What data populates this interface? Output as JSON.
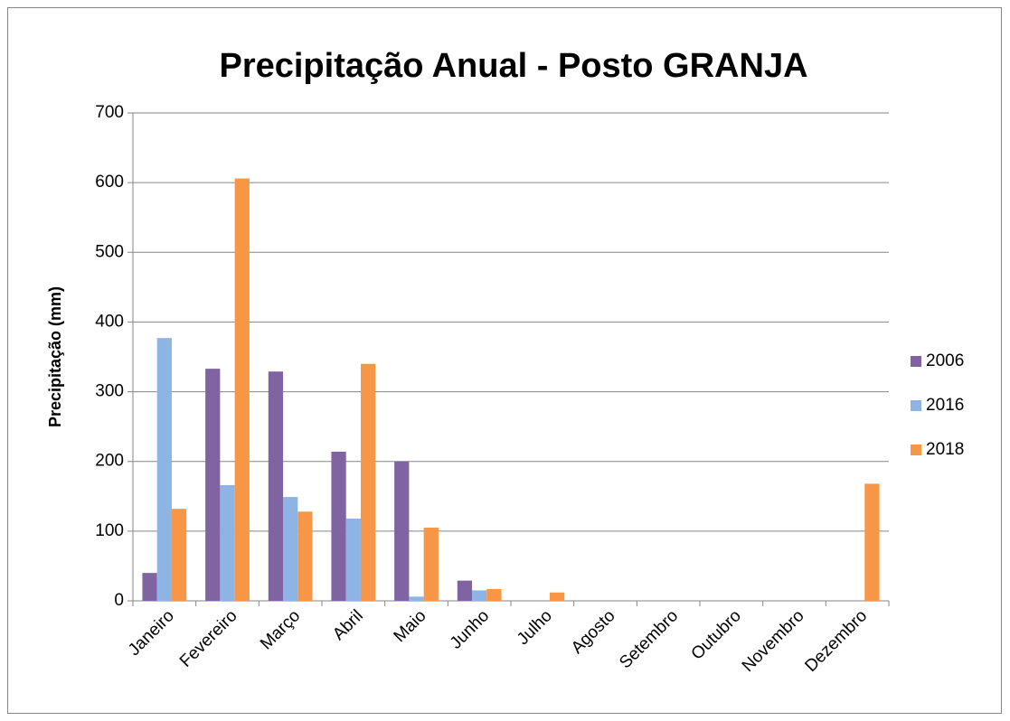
{
  "chart_data": {
    "type": "bar",
    "title": "Precipitação Anual - Posto GRANJA",
    "y_label": "Precipitação (mm)",
    "categories": [
      "Janeiro",
      "Fevereiro",
      "Março",
      "Abril",
      "Maio",
      "Junho",
      "Julho",
      "Agosto",
      "Setembro",
      "Outubro",
      "Novembro",
      "Dezembro"
    ],
    "series": [
      {
        "name": "2006",
        "color": "#8064a2",
        "values": [
          40,
          333,
          329,
          214,
          200,
          29,
          0,
          0,
          0,
          0,
          0,
          0
        ]
      },
      {
        "name": "2016",
        "color": "#8eb4e3",
        "values": [
          377,
          166,
          149,
          118,
          6,
          15,
          0,
          0,
          0,
          0,
          0,
          0
        ]
      },
      {
        "name": "2018",
        "color": "#f79646",
        "values": [
          132,
          606,
          128,
          340,
          105,
          17,
          12,
          0,
          0,
          0,
          0,
          168
        ]
      }
    ],
    "ylim": [
      0,
      700
    ],
    "yticks": [
      0,
      100,
      200,
      300,
      400,
      500,
      600,
      700
    ],
    "grid": true,
    "legend": "right"
  }
}
